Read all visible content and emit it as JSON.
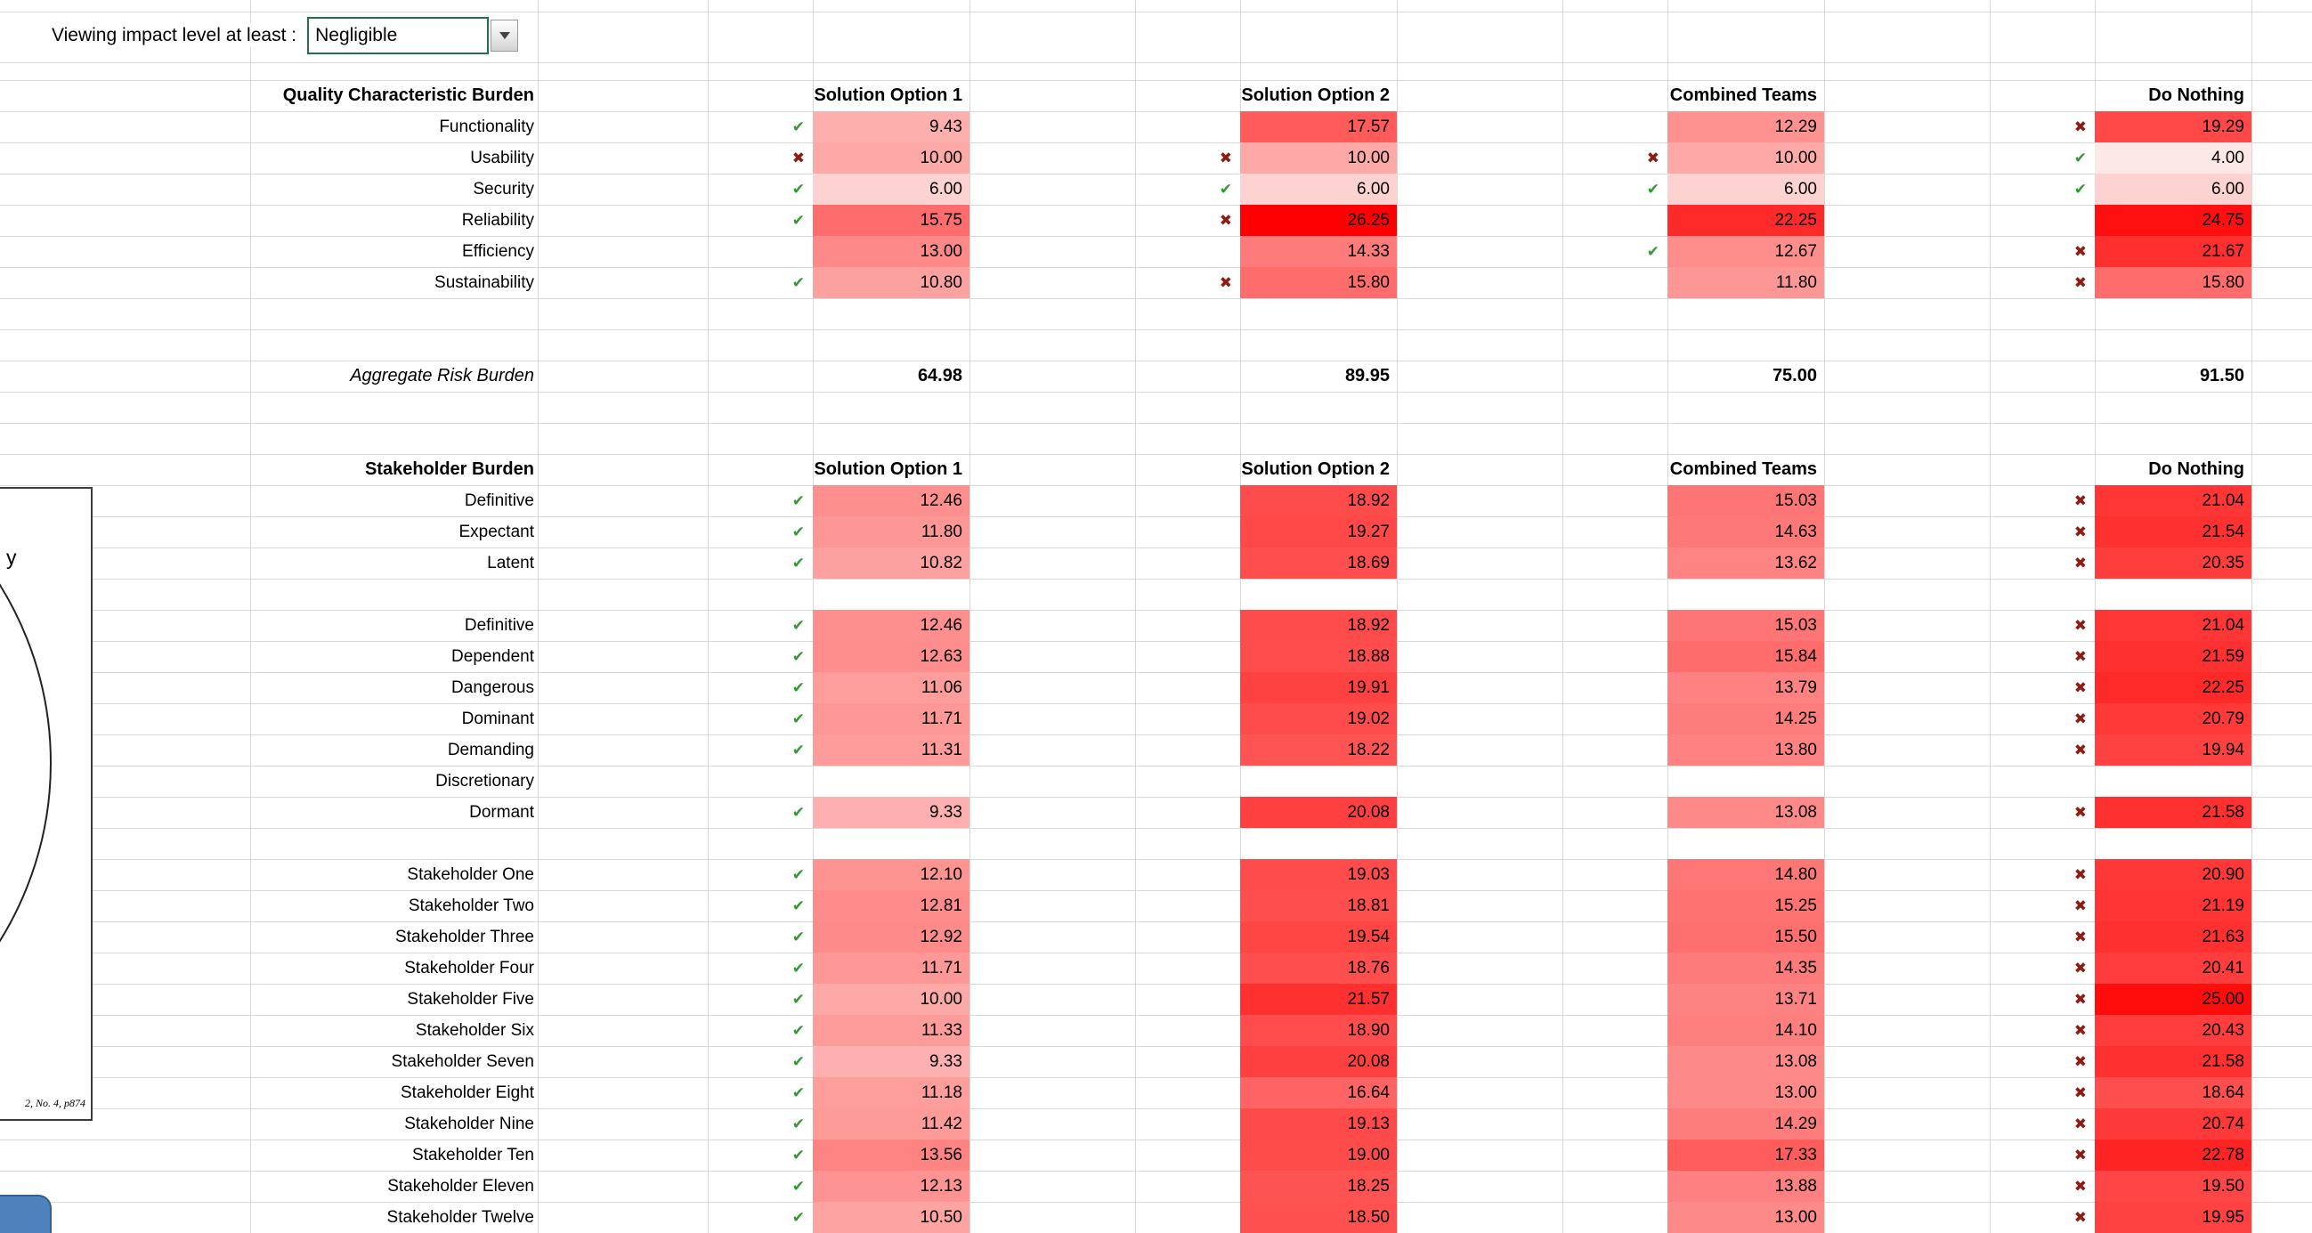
{
  "filter": {
    "label": "Viewing impact level at least :",
    "value": "Negligible"
  },
  "column_headers": [
    "Solution Option 1",
    "Solution Option 2",
    "Combined Teams",
    "Do Nothing"
  ],
  "marks": {
    "check": "✔",
    "cross": "✖"
  },
  "colors": {
    "check": "#339933",
    "cross": "#8e1c13",
    "heat_low": "#fce8e6",
    "heat_high": "#ff0000",
    "select_border": "#217346",
    "blue_shape": "#4f81bd"
  },
  "color_scale": {
    "min": 4.0,
    "max": 26.25
  },
  "quality_section": {
    "title": "Quality Characteristic Burden",
    "rows": [
      {
        "label": "Functionality",
        "cells": [
          [
            "check",
            "9.43"
          ],
          [
            "",
            "17.57"
          ],
          [
            "",
            "12.29"
          ],
          [
            "cross",
            "19.29"
          ]
        ]
      },
      {
        "label": "Usability",
        "cells": [
          [
            "cross",
            "10.00"
          ],
          [
            "cross",
            "10.00"
          ],
          [
            "cross",
            "10.00"
          ],
          [
            "check",
            "4.00"
          ]
        ]
      },
      {
        "label": "Security",
        "cells": [
          [
            "check",
            "6.00"
          ],
          [
            "check",
            "6.00"
          ],
          [
            "check",
            "6.00"
          ],
          [
            "check",
            "6.00"
          ]
        ]
      },
      {
        "label": "Reliability",
        "cells": [
          [
            "check",
            "15.75"
          ],
          [
            "cross",
            "26.25"
          ],
          [
            "",
            "22.25"
          ],
          [
            "",
            "24.75"
          ]
        ]
      },
      {
        "label": "Efficiency",
        "cells": [
          [
            "",
            "13.00"
          ],
          [
            "",
            "14.33"
          ],
          [
            "check",
            "12.67"
          ],
          [
            "cross",
            "21.67"
          ]
        ]
      },
      {
        "label": "Sustainability",
        "cells": [
          [
            "check",
            "10.80"
          ],
          [
            "cross",
            "15.80"
          ],
          [
            "",
            "11.80"
          ],
          [
            "cross",
            "15.80"
          ]
        ]
      }
    ],
    "summary": {
      "label": "Aggregate Risk Burden",
      "values": [
        "64.98",
        "89.95",
        "75.00",
        "91.50"
      ]
    }
  },
  "stakeholder_section": {
    "title": "Stakeholder Burden",
    "groups": [
      [
        {
          "label": "Definitive",
          "cells": [
            [
              "check",
              "12.46"
            ],
            [
              "",
              "18.92"
            ],
            [
              "",
              "15.03"
            ],
            [
              "cross",
              "21.04"
            ]
          ]
        },
        {
          "label": "Expectant",
          "cells": [
            [
              "check",
              "11.80"
            ],
            [
              "",
              "19.27"
            ],
            [
              "",
              "14.63"
            ],
            [
              "cross",
              "21.54"
            ]
          ]
        },
        {
          "label": "Latent",
          "cells": [
            [
              "check",
              "10.82"
            ],
            [
              "",
              "18.69"
            ],
            [
              "",
              "13.62"
            ],
            [
              "cross",
              "20.35"
            ]
          ]
        }
      ],
      [
        {
          "label": "Definitive",
          "cells": [
            [
              "check",
              "12.46"
            ],
            [
              "",
              "18.92"
            ],
            [
              "",
              "15.03"
            ],
            [
              "cross",
              "21.04"
            ]
          ]
        },
        {
          "label": "Dependent",
          "cells": [
            [
              "check",
              "12.63"
            ],
            [
              "",
              "18.88"
            ],
            [
              "",
              "15.84"
            ],
            [
              "cross",
              "21.59"
            ]
          ]
        },
        {
          "label": "Dangerous",
          "cells": [
            [
              "check",
              "11.06"
            ],
            [
              "",
              "19.91"
            ],
            [
              "",
              "13.79"
            ],
            [
              "cross",
              "22.25"
            ]
          ]
        },
        {
          "label": "Dominant",
          "cells": [
            [
              "check",
              "11.71"
            ],
            [
              "",
              "19.02"
            ],
            [
              "",
              "14.25"
            ],
            [
              "cross",
              "20.79"
            ]
          ]
        },
        {
          "label": "Demanding",
          "cells": [
            [
              "check",
              "11.31"
            ],
            [
              "",
              "18.22"
            ],
            [
              "",
              "13.80"
            ],
            [
              "cross",
              "19.94"
            ]
          ]
        },
        {
          "label": "Discretionary",
          "cells": []
        },
        {
          "label": "Dormant",
          "cells": [
            [
              "check",
              "9.33"
            ],
            [
              "",
              "20.08"
            ],
            [
              "",
              "13.08"
            ],
            [
              "cross",
              "21.58"
            ]
          ]
        }
      ],
      [
        {
          "label": "Stakeholder One",
          "cells": [
            [
              "check",
              "12.10"
            ],
            [
              "",
              "19.03"
            ],
            [
              "",
              "14.80"
            ],
            [
              "cross",
              "20.90"
            ]
          ]
        },
        {
          "label": "Stakeholder Two",
          "cells": [
            [
              "check",
              "12.81"
            ],
            [
              "",
              "18.81"
            ],
            [
              "",
              "15.25"
            ],
            [
              "cross",
              "21.19"
            ]
          ]
        },
        {
          "label": "Stakeholder Three",
          "cells": [
            [
              "check",
              "12.92"
            ],
            [
              "",
              "19.54"
            ],
            [
              "",
              "15.50"
            ],
            [
              "cross",
              "21.63"
            ]
          ]
        },
        {
          "label": "Stakeholder Four",
          "cells": [
            [
              "check",
              "11.71"
            ],
            [
              "",
              "18.76"
            ],
            [
              "",
              "14.35"
            ],
            [
              "cross",
              "20.41"
            ]
          ]
        },
        {
          "label": "Stakeholder Five",
          "cells": [
            [
              "check",
              "10.00"
            ],
            [
              "",
              "21.57"
            ],
            [
              "",
              "13.71"
            ],
            [
              "cross",
              "25.00"
            ]
          ]
        },
        {
          "label": "Stakeholder Six",
          "cells": [
            [
              "check",
              "11.33"
            ],
            [
              "",
              "18.90"
            ],
            [
              "",
              "14.10"
            ],
            [
              "cross",
              "20.43"
            ]
          ]
        },
        {
          "label": "Stakeholder Seven",
          "cells": [
            [
              "check",
              "9.33"
            ],
            [
              "",
              "20.08"
            ],
            [
              "",
              "13.08"
            ],
            [
              "cross",
              "21.58"
            ]
          ]
        },
        {
          "label": "Stakeholder Eight",
          "cells": [
            [
              "check",
              "11.18"
            ],
            [
              "",
              "16.64"
            ],
            [
              "",
              "13.00"
            ],
            [
              "cross",
              "18.64"
            ]
          ]
        },
        {
          "label": "Stakeholder Nine",
          "cells": [
            [
              "check",
              "11.42"
            ],
            [
              "",
              "19.13"
            ],
            [
              "",
              "14.29"
            ],
            [
              "cross",
              "20.74"
            ]
          ]
        },
        {
          "label": "Stakeholder Ten",
          "cells": [
            [
              "check",
              "13.56"
            ],
            [
              "",
              "19.00"
            ],
            [
              "",
              "17.33"
            ],
            [
              "cross",
              "22.78"
            ]
          ]
        },
        {
          "label": "Stakeholder Eleven",
          "cells": [
            [
              "check",
              "12.13"
            ],
            [
              "",
              "18.25"
            ],
            [
              "",
              "13.88"
            ],
            [
              "cross",
              "19.50"
            ]
          ]
        },
        {
          "label": "Stakeholder Twelve",
          "cells": [
            [
              "check",
              "10.50"
            ],
            [
              "",
              "18.50"
            ],
            [
              "",
              "13.00"
            ],
            [
              "cross",
              "19.95"
            ]
          ]
        }
      ]
    ]
  },
  "picture": {
    "fragment_text": "y",
    "citation": "2, No. 4, p874"
  }
}
